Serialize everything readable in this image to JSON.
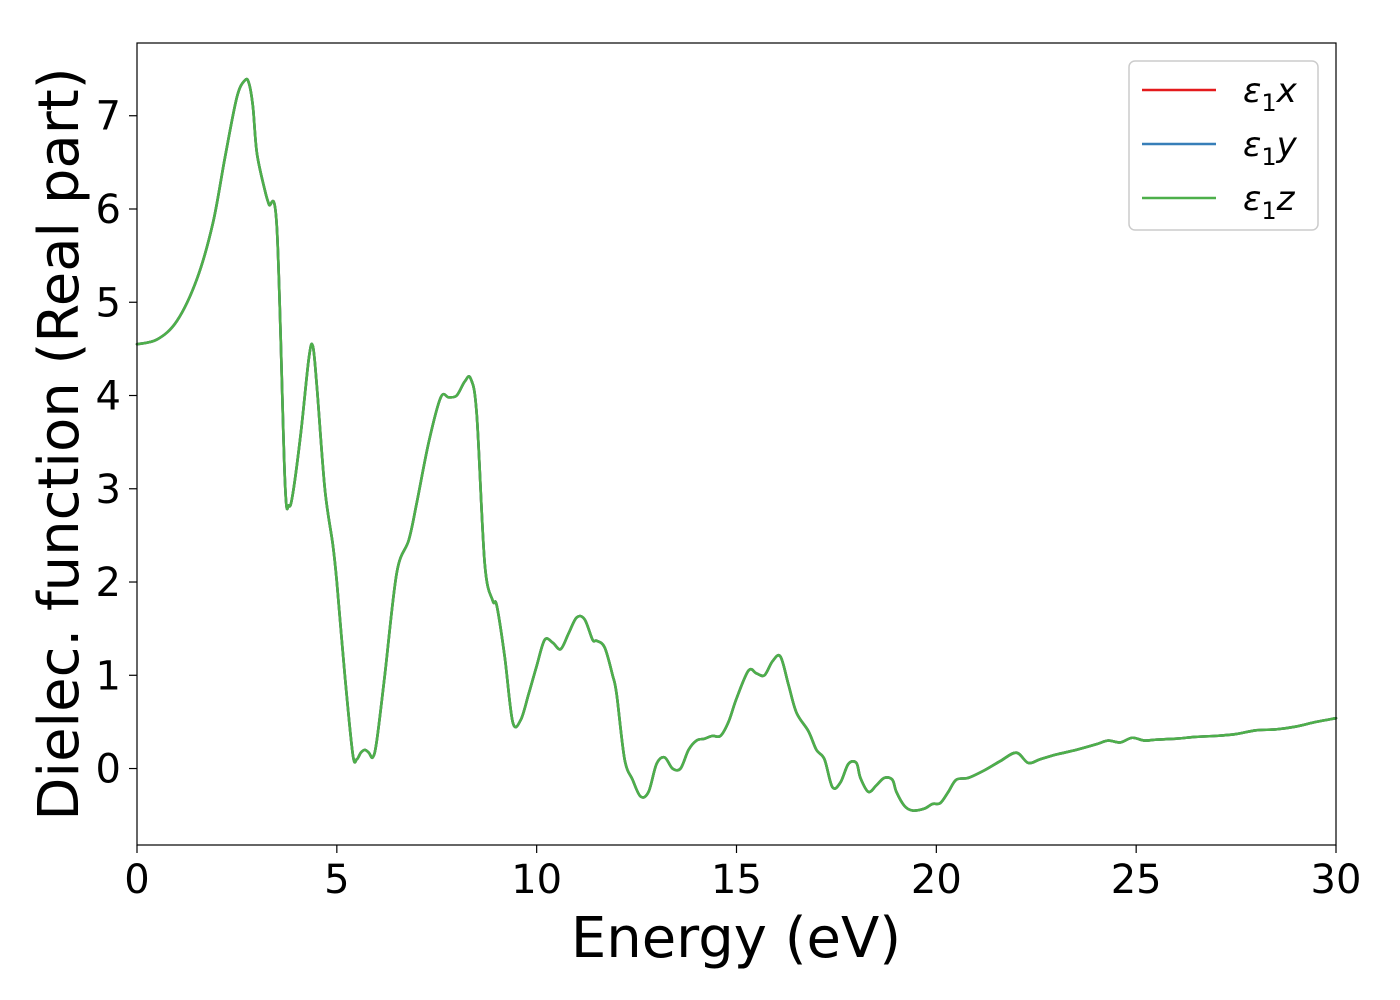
{
  "chart_data": {
    "type": "line",
    "xlabel": "Energy (eV)",
    "ylabel": "Dielec. function (Real part)",
    "xlim": [
      0,
      30
    ],
    "ylim": [
      -0.82,
      7.78
    ],
    "xticks": [
      0,
      5,
      10,
      15,
      20,
      25,
      30
    ],
    "yticks": [
      0,
      1,
      2,
      3,
      4,
      5,
      6,
      7
    ],
    "grid": false,
    "legend_position": "top-right",
    "series": [
      {
        "name": "ε1x",
        "legend_base": "ε",
        "legend_sub": "1",
        "legend_axis": "x",
        "color": "#e41a1c",
        "x": [
          0,
          0.5,
          1.0,
          1.5,
          1.9,
          2.2,
          2.5,
          2.7,
          2.8,
          2.9,
          3.0,
          3.2,
          3.3,
          3.5,
          3.7,
          3.8,
          3.9,
          4.1,
          4.3,
          4.4,
          4.5,
          4.7,
          4.9,
          5.0,
          5.2,
          5.4,
          5.5,
          5.6,
          5.7,
          5.8,
          5.9,
          6.0,
          6.2,
          6.5,
          6.8,
          7.0,
          7.3,
          7.6,
          7.8,
          8.0,
          8.2,
          8.35,
          8.5,
          8.7,
          8.9,
          9.0,
          9.2,
          9.4,
          9.6,
          9.8,
          10.0,
          10.2,
          10.4,
          10.6,
          10.8,
          11.0,
          11.2,
          11.4,
          11.5,
          11.7,
          11.9,
          12.0,
          12.2,
          12.4,
          12.6,
          12.8,
          13.0,
          13.2,
          13.4,
          13.6,
          13.8,
          14.0,
          14.2,
          14.4,
          14.6,
          14.8,
          15.0,
          15.3,
          15.5,
          15.7,
          15.9,
          16.1,
          16.3,
          16.5,
          16.8,
          17.0,
          17.2,
          17.4,
          17.6,
          17.8,
          18.0,
          18.1,
          18.3,
          18.5,
          18.7,
          18.9,
          19.0,
          19.2,
          19.4,
          19.7,
          19.9,
          20.1,
          20.3,
          20.5,
          20.8,
          21.2,
          21.6,
          22.0,
          22.3,
          22.6,
          23.0,
          23.5,
          24.0,
          24.3,
          24.6,
          24.9,
          25.2,
          25.5,
          26.0,
          26.5,
          27.0,
          27.5,
          28.0,
          28.5,
          29.0,
          29.5,
          30.0
        ],
        "y": [
          4.55,
          4.6,
          4.8,
          5.25,
          5.85,
          6.55,
          7.2,
          7.38,
          7.35,
          7.1,
          6.6,
          6.2,
          6.05,
          5.8,
          3.1,
          2.82,
          2.95,
          3.6,
          4.4,
          4.53,
          4.1,
          3.0,
          2.4,
          2.0,
          1.0,
          0.15,
          0.1,
          0.17,
          0.2,
          0.17,
          0.12,
          0.3,
          1.0,
          2.1,
          2.45,
          2.85,
          3.5,
          3.98,
          3.98,
          4.0,
          4.15,
          4.18,
          3.8,
          2.2,
          1.8,
          1.75,
          1.2,
          0.5,
          0.52,
          0.8,
          1.1,
          1.38,
          1.35,
          1.28,
          1.45,
          1.62,
          1.6,
          1.38,
          1.37,
          1.3,
          1.0,
          0.8,
          0.1,
          -0.12,
          -0.3,
          -0.25,
          0.05,
          0.12,
          0.0,
          0.0,
          0.2,
          0.3,
          0.32,
          0.35,
          0.35,
          0.5,
          0.75,
          1.05,
          1.02,
          1.0,
          1.15,
          1.2,
          0.9,
          0.6,
          0.4,
          0.2,
          0.1,
          -0.2,
          -0.15,
          0.05,
          0.06,
          -0.1,
          -0.25,
          -0.18,
          -0.1,
          -0.12,
          -0.25,
          -0.4,
          -0.45,
          -0.43,
          -0.38,
          -0.37,
          -0.25,
          -0.12,
          -0.1,
          -0.02,
          0.08,
          0.17,
          0.06,
          0.1,
          0.15,
          0.2,
          0.26,
          0.3,
          0.28,
          0.33,
          0.3,
          0.31,
          0.32,
          0.34,
          0.35,
          0.37,
          0.41,
          0.42,
          0.45,
          0.5,
          0.54
        ]
      },
      {
        "name": "ε1y",
        "legend_base": "ε",
        "legend_sub": "1",
        "legend_axis": "y",
        "color": "#377eb8",
        "x": [
          0,
          0.5,
          1.0,
          1.5,
          1.9,
          2.2,
          2.5,
          2.7,
          2.8,
          2.9,
          3.0,
          3.2,
          3.3,
          3.5,
          3.7,
          3.8,
          3.9,
          4.1,
          4.3,
          4.4,
          4.5,
          4.7,
          4.9,
          5.0,
          5.2,
          5.4,
          5.5,
          5.6,
          5.7,
          5.8,
          5.9,
          6.0,
          6.2,
          6.5,
          6.8,
          7.0,
          7.3,
          7.6,
          7.8,
          8.0,
          8.2,
          8.35,
          8.5,
          8.7,
          8.9,
          9.0,
          9.2,
          9.4,
          9.6,
          9.8,
          10.0,
          10.2,
          10.4,
          10.6,
          10.8,
          11.0,
          11.2,
          11.4,
          11.5,
          11.7,
          11.9,
          12.0,
          12.2,
          12.4,
          12.6,
          12.8,
          13.0,
          13.2,
          13.4,
          13.6,
          13.8,
          14.0,
          14.2,
          14.4,
          14.6,
          14.8,
          15.0,
          15.3,
          15.5,
          15.7,
          15.9,
          16.1,
          16.3,
          16.5,
          16.8,
          17.0,
          17.2,
          17.4,
          17.6,
          17.8,
          18.0,
          18.1,
          18.3,
          18.5,
          18.7,
          18.9,
          19.0,
          19.2,
          19.4,
          19.7,
          19.9,
          20.1,
          20.3,
          20.5,
          20.8,
          21.2,
          21.6,
          22.0,
          22.3,
          22.6,
          23.0,
          23.5,
          24.0,
          24.3,
          24.6,
          24.9,
          25.2,
          25.5,
          26.0,
          26.5,
          27.0,
          27.5,
          28.0,
          28.5,
          29.0,
          29.5,
          30.0
        ],
        "y": [
          4.55,
          4.6,
          4.8,
          5.25,
          5.85,
          6.55,
          7.2,
          7.38,
          7.35,
          7.1,
          6.6,
          6.2,
          6.05,
          5.8,
          3.1,
          2.82,
          2.95,
          3.6,
          4.4,
          4.53,
          4.1,
          3.0,
          2.4,
          2.0,
          1.0,
          0.15,
          0.1,
          0.17,
          0.2,
          0.17,
          0.12,
          0.3,
          1.0,
          2.1,
          2.45,
          2.85,
          3.5,
          3.98,
          3.98,
          4.0,
          4.15,
          4.18,
          3.8,
          2.2,
          1.8,
          1.75,
          1.2,
          0.5,
          0.52,
          0.8,
          1.1,
          1.38,
          1.35,
          1.28,
          1.45,
          1.62,
          1.6,
          1.38,
          1.37,
          1.3,
          1.0,
          0.8,
          0.1,
          -0.12,
          -0.3,
          -0.25,
          0.05,
          0.12,
          0.0,
          0.0,
          0.2,
          0.3,
          0.32,
          0.35,
          0.35,
          0.5,
          0.75,
          1.05,
          1.02,
          1.0,
          1.15,
          1.2,
          0.9,
          0.6,
          0.4,
          0.2,
          0.1,
          -0.2,
          -0.15,
          0.05,
          0.06,
          -0.1,
          -0.25,
          -0.18,
          -0.1,
          -0.12,
          -0.25,
          -0.4,
          -0.45,
          -0.43,
          -0.38,
          -0.37,
          -0.25,
          -0.12,
          -0.1,
          -0.02,
          0.08,
          0.17,
          0.06,
          0.1,
          0.15,
          0.2,
          0.26,
          0.3,
          0.28,
          0.33,
          0.3,
          0.31,
          0.32,
          0.34,
          0.35,
          0.37,
          0.41,
          0.42,
          0.45,
          0.5,
          0.54
        ]
      },
      {
        "name": "ε1z",
        "legend_base": "ε",
        "legend_sub": "1",
        "legend_axis": "z",
        "color": "#4daf4a",
        "x": [
          0,
          0.5,
          1.0,
          1.5,
          1.9,
          2.2,
          2.5,
          2.7,
          2.8,
          2.9,
          3.0,
          3.2,
          3.3,
          3.5,
          3.7,
          3.8,
          3.9,
          4.1,
          4.3,
          4.4,
          4.5,
          4.7,
          4.9,
          5.0,
          5.2,
          5.4,
          5.5,
          5.6,
          5.7,
          5.8,
          5.9,
          6.0,
          6.2,
          6.5,
          6.8,
          7.0,
          7.3,
          7.6,
          7.8,
          8.0,
          8.2,
          8.35,
          8.5,
          8.7,
          8.9,
          9.0,
          9.2,
          9.4,
          9.6,
          9.8,
          10.0,
          10.2,
          10.4,
          10.6,
          10.8,
          11.0,
          11.2,
          11.4,
          11.5,
          11.7,
          11.9,
          12.0,
          12.2,
          12.4,
          12.6,
          12.8,
          13.0,
          13.2,
          13.4,
          13.6,
          13.8,
          14.0,
          14.2,
          14.4,
          14.6,
          14.8,
          15.0,
          15.3,
          15.5,
          15.7,
          15.9,
          16.1,
          16.3,
          16.5,
          16.8,
          17.0,
          17.2,
          17.4,
          17.6,
          17.8,
          18.0,
          18.1,
          18.3,
          18.5,
          18.7,
          18.9,
          19.0,
          19.2,
          19.4,
          19.7,
          19.9,
          20.1,
          20.3,
          20.5,
          20.8,
          21.2,
          21.6,
          22.0,
          22.3,
          22.6,
          23.0,
          23.5,
          24.0,
          24.3,
          24.6,
          24.9,
          25.2,
          25.5,
          26.0,
          26.5,
          27.0,
          27.5,
          28.0,
          28.5,
          29.0,
          29.5,
          30.0
        ],
        "y": [
          4.55,
          4.6,
          4.8,
          5.25,
          5.85,
          6.55,
          7.2,
          7.38,
          7.35,
          7.1,
          6.6,
          6.2,
          6.05,
          5.8,
          3.1,
          2.82,
          2.95,
          3.6,
          4.4,
          4.53,
          4.1,
          3.0,
          2.4,
          2.0,
          1.0,
          0.15,
          0.1,
          0.17,
          0.2,
          0.17,
          0.12,
          0.3,
          1.0,
          2.1,
          2.45,
          2.85,
          3.5,
          3.98,
          3.98,
          4.0,
          4.15,
          4.18,
          3.8,
          2.2,
          1.8,
          1.75,
          1.2,
          0.5,
          0.52,
          0.8,
          1.1,
          1.38,
          1.35,
          1.28,
          1.45,
          1.62,
          1.6,
          1.38,
          1.37,
          1.3,
          1.0,
          0.8,
          0.1,
          -0.12,
          -0.3,
          -0.25,
          0.05,
          0.12,
          0.0,
          0.0,
          0.2,
          0.3,
          0.32,
          0.35,
          0.35,
          0.5,
          0.75,
          1.05,
          1.02,
          1.0,
          1.15,
          1.2,
          0.9,
          0.6,
          0.4,
          0.2,
          0.1,
          -0.2,
          -0.15,
          0.05,
          0.06,
          -0.1,
          -0.25,
          -0.18,
          -0.1,
          -0.12,
          -0.25,
          -0.4,
          -0.45,
          -0.43,
          -0.38,
          -0.37,
          -0.25,
          -0.12,
          -0.1,
          -0.02,
          0.08,
          0.17,
          0.06,
          0.1,
          0.15,
          0.2,
          0.26,
          0.3,
          0.28,
          0.33,
          0.3,
          0.31,
          0.32,
          0.34,
          0.35,
          0.37,
          0.41,
          0.42,
          0.45,
          0.5,
          0.54
        ]
      }
    ]
  }
}
